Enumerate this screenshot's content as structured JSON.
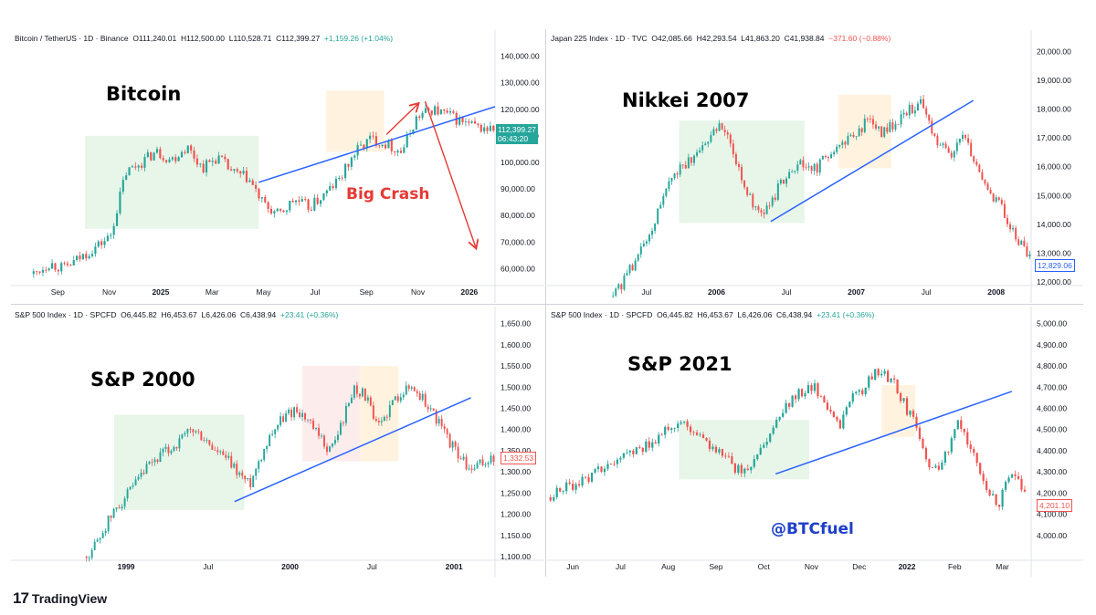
{
  "branding": {
    "logo_mark": "17",
    "logo_text": "TradingView"
  },
  "colors": {
    "up": "#26a69a",
    "down": "#ef5350",
    "trend": "#2962ff",
    "green_box": "#e8f5e9",
    "orange_box": "#fff3e0",
    "pink_box": "#fdecec",
    "crash": "#e53935",
    "watermark": "#1e40c8"
  },
  "panels": [
    {
      "id": "btc",
      "header": {
        "symbol": "Bitcoin / TetherUS · 1D · Binance",
        "o": "O111,240.01",
        "h": "H112,500.00",
        "l": "L110,528.71",
        "c": "C112,399.27",
        "chg": "+1,159.26 (+1.04%)"
      },
      "title": "Bitcoin",
      "price_tag": "112,399.27",
      "time_tag": "06:43:20",
      "annotation": "Big Crash"
    },
    {
      "id": "nikkei",
      "header": {
        "symbol": "Japan 225 Index · 1D · TVC",
        "o": "O42,085.66",
        "h": "H42,293.54",
        "l": "L41,863.20",
        "c": "C41,938.84",
        "chg": "−371.60 (−0.88%)"
      },
      "title": "Nikkei 2007",
      "price_tag": "12,829.06"
    },
    {
      "id": "sp2000",
      "header": {
        "symbol": "S&P 500 Index · 1D · SPCFD",
        "o": "O6,445.82",
        "h": "H6,453.67",
        "l": "L6,426.06",
        "c": "C6,438.94",
        "chg": "+23.41 (+0.36%)"
      },
      "title": "S&P 2000",
      "price_tag": "1,332.53"
    },
    {
      "id": "sp2021",
      "header": {
        "symbol": "S&P 500 Index · 1D · SPCFD",
        "o": "O6,445.82",
        "h": "H6,453.67",
        "l": "L6,426.06",
        "c": "C6,438.94",
        "chg": "+23.41 (+0.36%)"
      },
      "title": "S&P 2021",
      "price_tag": "4,201.10",
      "watermark": "@BTCfuel"
    }
  ],
  "chart_data": [
    {
      "type": "candlestick",
      "title": "Bitcoin",
      "ylim": [
        55000,
        145000
      ],
      "y_ticks": [
        60000,
        70000,
        80000,
        90000,
        100000,
        110000,
        120000,
        130000,
        140000
      ],
      "y_tick_labels": [
        "60,000.00",
        "70,000.00",
        "80,000.00",
        "90,000.00",
        "100,000.00",
        "110,000.00",
        "120,000.00",
        "130,000.00",
        "140,000.00"
      ],
      "x_ticks": [
        "Sep",
        "Nov",
        "2025",
        "Mar",
        "May",
        "Jul",
        "Sep",
        "Nov",
        "2026"
      ],
      "x_bold": [
        false,
        false,
        true,
        false,
        false,
        false,
        false,
        false,
        true
      ],
      "path": [
        58000,
        62000,
        60000,
        64000,
        68000,
        72000,
        96000,
        100000,
        104000,
        101000,
        106000,
        98000,
        102000,
        96000,
        94000,
        84000,
        80000,
        86000,
        83000,
        88000,
        94000,
        104000,
        109000,
        107000,
        104000,
        117000,
        120000,
        118000,
        115000,
        113000,
        112399
      ],
      "zones": [
        {
          "kind": "green",
          "from": 0.15,
          "to": 0.51,
          "low": 75000,
          "high": 110000
        },
        {
          "kind": "orange",
          "from": 0.65,
          "to": 0.77,
          "low": 104000,
          "high": 127000
        }
      ],
      "trendline": {
        "from": [
          0.51,
          92500
        ],
        "to": [
          1.0,
          121000
        ]
      },
      "projection": {
        "up_arrow": [
          [
            0.775,
            110500
          ],
          [
            0.84,
            122000
          ]
        ],
        "down_arrow": [
          [
            0.855,
            123000
          ],
          [
            0.96,
            68000
          ]
        ]
      }
    },
    {
      "type": "candlestick",
      "title": "Nikkei 2007",
      "ylim": [
        12000,
        20300
      ],
      "y_ticks": [
        12000,
        13000,
        14000,
        15000,
        16000,
        17000,
        18000,
        19000,
        20000
      ],
      "y_tick_labels": [
        "12,000.00",
        "13,000.00",
        "14,000.00",
        "15,000.00",
        "16,000.00",
        "17,000.00",
        "18,000.00",
        "19,000.00",
        "20,000.00"
      ],
      "x_ticks": [
        "Jul",
        "2006",
        "Jul",
        "2007",
        "Jul",
        "2008"
      ],
      "x_bold": [
        false,
        true,
        false,
        true,
        false,
        true
      ],
      "path": [
        11500,
        12200,
        13000,
        14000,
        15300,
        16000,
        16200,
        17000,
        17400,
        16500,
        15000,
        14300,
        15000,
        15800,
        16200,
        15900,
        16400,
        16800,
        17200,
        17600,
        17200,
        17500,
        18000,
        18200,
        17000,
        16300,
        17200,
        16000,
        15200,
        14500,
        13500,
        12829
      ],
      "zones": [
        {
          "kind": "green",
          "from": 0.27,
          "to": 0.53,
          "low": 14050,
          "high": 17600
        },
        {
          "kind": "orange",
          "from": 0.6,
          "to": 0.71,
          "low": 15950,
          "high": 18500
        }
      ],
      "trendline": {
        "from": [
          0.46,
          14100
        ],
        "to": [
          0.88,
          18300
        ]
      }
    },
    {
      "type": "candlestick",
      "title": "S&P 2000",
      "ylim": [
        1100,
        1660
      ],
      "y_ticks": [
        1100,
        1150,
        1200,
        1250,
        1300,
        1350,
        1400,
        1450,
        1500,
        1550,
        1600,
        1650
      ],
      "y_tick_labels": [
        "1,100.00",
        "1,150.00",
        "1,200.00",
        "1,250.00",
        "1,300.00",
        "1,350.00",
        "1,400.00",
        "1,450.00",
        "1,500.00",
        "1,550.00",
        "1,600.00",
        "1,650.00"
      ],
      "x_ticks": [
        "1999",
        "Jul",
        "2000",
        "Jul",
        "2001"
      ],
      "x_bold": [
        true,
        false,
        true,
        false,
        true
      ],
      "path": [
        1100,
        1140,
        1190,
        1230,
        1260,
        1300,
        1330,
        1350,
        1370,
        1400,
        1380,
        1350,
        1330,
        1300,
        1270,
        1340,
        1400,
        1430,
        1450,
        1420,
        1380,
        1350,
        1420,
        1500,
        1480,
        1400,
        1450,
        1490,
        1500,
        1470,
        1430,
        1380,
        1340,
        1300,
        1320,
        1332
      ],
      "zones": [
        {
          "kind": "green",
          "from": 0.21,
          "to": 0.48,
          "low": 1210,
          "high": 1435
        },
        {
          "kind": "pink",
          "from": 0.6,
          "to": 0.72,
          "low": 1325,
          "high": 1550
        },
        {
          "kind": "orange",
          "from": 0.72,
          "to": 0.8,
          "low": 1325,
          "high": 1550
        }
      ],
      "trendline": {
        "from": [
          0.46,
          1230
        ],
        "to": [
          0.95,
          1475
        ]
      }
    },
    {
      "type": "candlestick",
      "title": "S&P 2021",
      "ylim": [
        3900,
        5020
      ],
      "y_ticks": [
        4000,
        4100,
        4200,
        4300,
        4400,
        4500,
        4600,
        4700,
        4800,
        4900,
        5000
      ],
      "y_tick_labels": [
        "4,000.00",
        "4,100.00",
        "4,200.00",
        "4,300.00",
        "4,400.00",
        "4,500.00",
        "4,600.00",
        "4,700.00",
        "4,800.00",
        "4,900.00",
        "5,000.00"
      ],
      "x_ticks": [
        "Jun",
        "Jul",
        "Aug",
        "Sep",
        "Oct",
        "Nov",
        "Dec",
        "2022",
        "Feb",
        "Mar"
      ],
      "x_bold": [
        false,
        false,
        false,
        false,
        false,
        false,
        false,
        true,
        false,
        false
      ],
      "path": [
        4180,
        4220,
        4250,
        4280,
        4330,
        4370,
        4390,
        4420,
        4460,
        4510,
        4530,
        4480,
        4430,
        4380,
        4320,
        4300,
        4400,
        4530,
        4620,
        4680,
        4700,
        4600,
        4520,
        4650,
        4710,
        4790,
        4720,
        4600,
        4480,
        4300,
        4380,
        4540,
        4400,
        4250,
        4150,
        4300,
        4201
      ],
      "zones": [
        {
          "kind": "green",
          "from": 0.27,
          "to": 0.54,
          "low": 4265,
          "high": 4545
        },
        {
          "kind": "orange",
          "from": 0.69,
          "to": 0.76,
          "low": 4465,
          "high": 4710
        }
      ],
      "trendline": {
        "from": [
          0.47,
          4290
        ],
        "to": [
          0.96,
          4680
        ]
      }
    }
  ]
}
